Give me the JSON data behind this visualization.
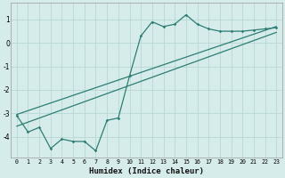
{
  "xlabel": "Humidex (Indice chaleur)",
  "ylabel": "",
  "bg_color": "#d5ecea",
  "grid_color": "#b8d8d5",
  "line_color": "#2e7d74",
  "xlim": [
    -0.5,
    23.5
  ],
  "ylim": [
    -4.9,
    1.7
  ],
  "xticks": [
    0,
    1,
    2,
    3,
    4,
    5,
    6,
    7,
    8,
    9,
    10,
    11,
    12,
    13,
    14,
    15,
    16,
    17,
    18,
    19,
    20,
    21,
    22,
    23
  ],
  "yticks": [
    -4,
    -3,
    -2,
    -1,
    0,
    1
  ],
  "data_x": [
    0,
    1,
    2,
    3,
    4,
    5,
    6,
    7,
    8,
    9,
    10,
    11,
    12,
    13,
    14,
    15,
    16,
    17,
    18,
    19,
    20,
    21,
    22,
    23
  ],
  "data_y": [
    -3.1,
    -3.8,
    -3.6,
    -4.5,
    -4.1,
    -4.2,
    -4.2,
    -4.6,
    -3.3,
    -3.2,
    -1.4,
    0.3,
    0.9,
    0.7,
    0.8,
    1.2,
    0.8,
    0.6,
    0.5,
    0.5,
    0.5,
    0.55,
    0.6,
    0.65
  ],
  "line1_x": [
    0,
    23
  ],
  "line1_y": [
    -3.05,
    0.7
  ],
  "line2_x": [
    0,
    23
  ],
  "line2_y": [
    -3.55,
    0.45
  ]
}
